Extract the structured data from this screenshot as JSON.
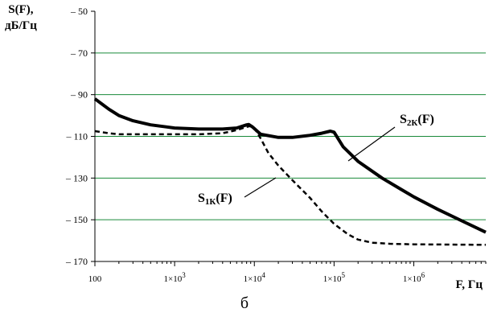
{
  "caption": "б",
  "chart_data": {
    "type": "line",
    "xscale": "log",
    "ylabel": [
      "S(F),",
      "дБ/Гц"
    ],
    "xlabel": "F, Гц",
    "xlim": [
      100,
      8000000
    ],
    "ylim": [
      -170,
      -50
    ],
    "yticks": [
      -50,
      -70,
      -90,
      -110,
      -130,
      -150,
      -170
    ],
    "ytick_labels": [
      "– 50",
      "– 70",
      "– 90",
      "– 110",
      "– 130",
      "– 150",
      "– 170"
    ],
    "xticks": [
      100,
      1000,
      10000,
      100000,
      1000000
    ],
    "xtick_labels": [
      {
        "base": "100",
        "exp": ""
      },
      {
        "base": "1×10",
        "exp": "3"
      },
      {
        "base": "1×10",
        "exp": "4"
      },
      {
        "base": "1×10",
        "exp": "5"
      },
      {
        "base": "1×10",
        "exp": "6"
      }
    ],
    "grid": "horizontal",
    "grid_color": "#1a8a3a",
    "series": [
      {
        "name": "S2K(F)",
        "label_main": "S",
        "label_sub": "2К",
        "label_tail": "(F)",
        "style": "solid",
        "x": [
          100,
          150,
          200,
          300,
          500,
          800,
          1000,
          2000,
          4000,
          6000,
          8000,
          8500,
          9500,
          12000,
          20000,
          30000,
          50000,
          70000,
          90000,
          100000,
          130000,
          200000,
          400000,
          700000,
          1000000,
          2000000,
          4000000,
          8000000
        ],
        "y": [
          -92,
          -97,
          -100,
          -102.5,
          -104.5,
          -105.5,
          -106,
          -106.5,
          -106.5,
          -106,
          -104.5,
          -104.3,
          -105.5,
          -109,
          -110.5,
          -110.5,
          -109.5,
          -108.5,
          -107.5,
          -108,
          -115,
          -122,
          -130,
          -135.5,
          -139,
          -145,
          -150.5,
          -156
        ]
      },
      {
        "name": "S1K(F)",
        "label_main": "S",
        "label_sub": "1К",
        "label_tail": "(F)",
        "style": "dashed",
        "x": [
          100,
          150,
          200,
          500,
          1000,
          2000,
          4000,
          6000,
          8000,
          9000,
          10000,
          12000,
          15000,
          20000,
          30000,
          50000,
          70000,
          100000,
          150000,
          200000,
          300000,
          500000,
          1000000,
          8000000
        ],
        "y": [
          -107.5,
          -108.5,
          -109,
          -109,
          -109,
          -109,
          -108.5,
          -107,
          -105.5,
          -105,
          -106,
          -111,
          -118,
          -124,
          -131,
          -139.5,
          -146,
          -152,
          -157,
          -159.5,
          -161,
          -161.5,
          -161.8,
          -162
        ]
      }
    ]
  }
}
